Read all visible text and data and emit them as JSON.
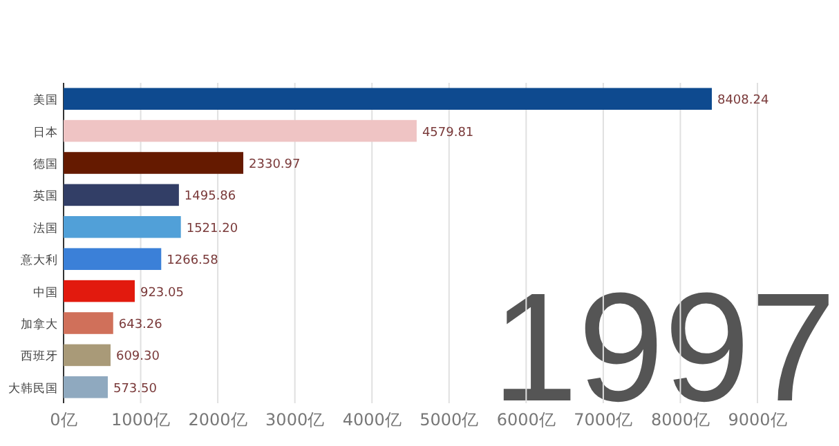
{
  "chart_data": {
    "type": "bar",
    "orientation": "horizontal",
    "categories": [
      "美国",
      "日本",
      "德国",
      "英国",
      "法国",
      "意大利",
      "中国",
      "加拿大",
      "西班牙",
      "大韩民国"
    ],
    "values": [
      8408.24,
      4579.81,
      2330.97,
      1495.86,
      1521.2,
      1266.58,
      923.05,
      643.26,
      609.3,
      573.5
    ],
    "colors": [
      "#0e4a8f",
      "#efc4c4",
      "#651a00",
      "#323e66",
      "#51a0d8",
      "#3b80d8",
      "#e21a0e",
      "#d0705a",
      "#a99a78",
      "#8fa9bf"
    ],
    "value_labels": [
      "8408.24",
      "4579.81",
      "2330.97",
      "1495.86",
      "1521.20",
      "1266.58",
      "923.05",
      "643.26",
      "609.30",
      "573.50"
    ],
    "xlim": [
      0,
      9000
    ],
    "xticks": [
      {
        "value": 0,
        "label": "0亿"
      },
      {
        "value": 1000,
        "label": "1000亿"
      },
      {
        "value": 2000,
        "label": "2000亿"
      },
      {
        "value": 3000,
        "label": "3000亿"
      },
      {
        "value": 4000,
        "label": "4000亿"
      },
      {
        "value": 5000,
        "label": "5000亿"
      },
      {
        "value": 6000,
        "label": "6000亿"
      },
      {
        "value": 7000,
        "label": "7000亿"
      },
      {
        "value": 8000,
        "label": "8000亿"
      },
      {
        "value": 9000,
        "label": "9000亿"
      }
    ],
    "grid": "x",
    "annotations": [
      "1997"
    ]
  }
}
